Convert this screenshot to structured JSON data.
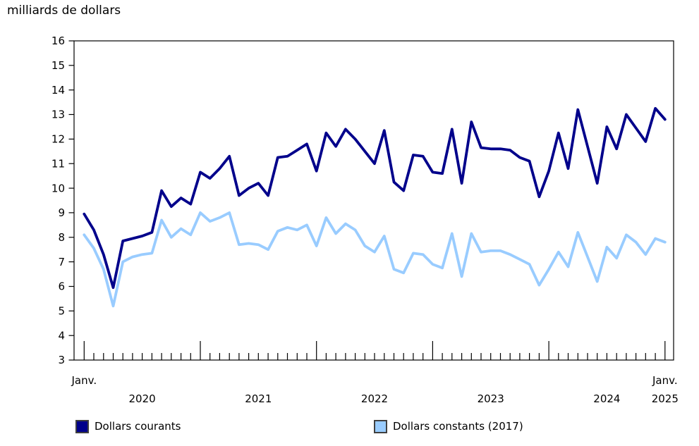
{
  "title": "milliards de dollars",
  "legend": [
    {
      "label": "Dollars courants",
      "color": "#00008B"
    },
    {
      "label": "Dollars constants (2017)",
      "color": "#99CCFF"
    }
  ],
  "axes": {
    "y": {
      "min": 3,
      "max": 16,
      "step": 1
    },
    "x": {
      "left_label": "Janv.",
      "right_label": "Janv.",
      "right_year": "2025",
      "year_labels": [
        "2020",
        "2021",
        "2022",
        "2023",
        "2024"
      ],
      "months_per_year": 12,
      "total_points": 61
    }
  },
  "chart_data": {
    "type": "line",
    "title": "milliards de dollars",
    "x_start": "Janv. 2020",
    "x_end": "Janv. 2025",
    "frequency": "monthly",
    "ylim": [
      3,
      16
    ],
    "grid": false,
    "legend_position": "bottom",
    "series": [
      {
        "name": "Dollars courants",
        "color": "#00008B",
        "values": [
          8.95,
          8.3,
          7.3,
          5.95,
          7.85,
          7.95,
          8.05,
          8.2,
          9.9,
          9.25,
          9.6,
          9.35,
          10.65,
          10.4,
          10.8,
          11.3,
          9.7,
          10.0,
          10.2,
          9.7,
          11.25,
          11.3,
          11.55,
          11.8,
          10.7,
          12.25,
          11.7,
          12.4,
          12.0,
          11.5,
          11.0,
          12.35,
          10.25,
          9.9,
          11.35,
          11.3,
          10.65,
          10.6,
          12.4,
          10.2,
          12.7,
          11.65,
          11.6,
          11.6,
          11.55,
          11.25,
          11.1,
          9.65,
          10.7,
          12.25,
          10.8,
          13.2,
          11.7,
          10.2,
          12.5,
          11.6,
          13.0,
          12.45,
          11.9,
          13.25,
          12.8
        ]
      },
      {
        "name": "Dollars constants (2017)",
        "color": "#99CCFF",
        "values": [
          8.1,
          7.55,
          6.7,
          5.2,
          7.0,
          7.2,
          7.3,
          7.35,
          8.7,
          8.0,
          8.35,
          8.1,
          9.0,
          8.65,
          8.8,
          9.0,
          7.7,
          7.75,
          7.7,
          7.5,
          8.25,
          8.4,
          8.3,
          8.5,
          7.65,
          8.8,
          8.15,
          8.55,
          8.3,
          7.65,
          7.4,
          8.05,
          6.7,
          6.55,
          7.35,
          7.3,
          6.9,
          6.75,
          8.15,
          6.4,
          8.15,
          7.4,
          7.45,
          7.45,
          7.3,
          7.1,
          6.9,
          6.05,
          6.7,
          7.4,
          6.8,
          8.2,
          7.2,
          6.2,
          7.6,
          7.15,
          8.1,
          7.8,
          7.3,
          7.95,
          7.8
        ]
      }
    ]
  }
}
